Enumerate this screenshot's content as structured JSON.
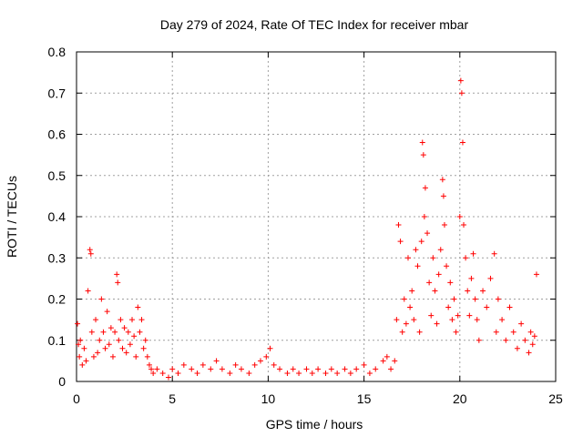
{
  "chart_data": {
    "type": "scatter",
    "title": "Day 279 of 2024, Rate Of TEC Index for receiver mbar",
    "xlabel": "GPS time / hours",
    "ylabel": "ROTI / TECUs",
    "xlim": [
      0,
      25
    ],
    "ylim": [
      0,
      0.8
    ],
    "xticks": [
      "0",
      "5",
      "10",
      "15",
      "20",
      "25"
    ],
    "yticks": [
      "0",
      "0.1",
      "0.2",
      "0.3",
      "0.4",
      "0.5",
      "0.6",
      "0.7",
      "0.8"
    ],
    "grid": true,
    "marker": "+",
    "color": "#ff0000",
    "series": [
      {
        "x": [
          0.05,
          0.1,
          0.15,
          0.2,
          0.3,
          0.4,
          0.5,
          0.6,
          0.7,
          0.75,
          0.8,
          0.9,
          1.0,
          1.1,
          1.2,
          1.3,
          1.4,
          1.5,
          1.6,
          1.7,
          1.8,
          1.9,
          2.0,
          2.1,
          2.15,
          2.2,
          2.3,
          2.4,
          2.5,
          2.6,
          2.7,
          2.8,
          2.9,
          3.0,
          3.1,
          3.2,
          3.3,
          3.4,
          3.5,
          3.6,
          3.7,
          3.8,
          3.9,
          4.0,
          4.2,
          4.5,
          4.8,
          5.0,
          5.3,
          5.6,
          6.0,
          6.3,
          6.6,
          7.0,
          7.3,
          7.6,
          8.0,
          8.3,
          8.6,
          9.0,
          9.3,
          9.6,
          9.9,
          10.1,
          10.3,
          10.6,
          11.0,
          11.3,
          11.6,
          12.0,
          12.3,
          12.6,
          13.0,
          13.3,
          13.6,
          14.0,
          14.3,
          14.6,
          15.0,
          15.3,
          15.6,
          16.0,
          16.2,
          16.4,
          16.6,
          16.7,
          16.8,
          16.9,
          17.0,
          17.1,
          17.2,
          17.3,
          17.4,
          17.5,
          17.6,
          17.7,
          17.8,
          17.9,
          18.0,
          18.05,
          18.1,
          18.15,
          18.2,
          18.3,
          18.4,
          18.5,
          18.6,
          18.7,
          18.8,
          18.9,
          19.0,
          19.1,
          19.15,
          19.2,
          19.3,
          19.4,
          19.5,
          19.6,
          19.7,
          19.8,
          19.9,
          20.0,
          20.05,
          20.1,
          20.15,
          20.2,
          20.3,
          20.4,
          20.5,
          20.6,
          20.7,
          20.8,
          20.9,
          21.0,
          21.2,
          21.4,
          21.6,
          21.8,
          21.9,
          22.0,
          22.2,
          22.4,
          22.6,
          22.8,
          23.0,
          23.2,
          23.4,
          23.6,
          23.7,
          23.8,
          23.9,
          24.0
        ],
        "y": [
          0.14,
          0.09,
          0.06,
          0.1,
          0.04,
          0.08,
          0.05,
          0.22,
          0.32,
          0.31,
          0.12,
          0.06,
          0.15,
          0.07,
          0.1,
          0.2,
          0.12,
          0.08,
          0.17,
          0.09,
          0.13,
          0.06,
          0.12,
          0.26,
          0.24,
          0.1,
          0.15,
          0.08,
          0.13,
          0.07,
          0.12,
          0.09,
          0.15,
          0.11,
          0.06,
          0.18,
          0.12,
          0.15,
          0.08,
          0.1,
          0.06,
          0.04,
          0.03,
          0.02,
          0.03,
          0.02,
          0.01,
          0.03,
          0.02,
          0.04,
          0.03,
          0.02,
          0.04,
          0.03,
          0.05,
          0.03,
          0.02,
          0.04,
          0.03,
          0.02,
          0.04,
          0.05,
          0.06,
          0.08,
          0.04,
          0.03,
          0.02,
          0.03,
          0.02,
          0.03,
          0.02,
          0.03,
          0.02,
          0.03,
          0.02,
          0.03,
          0.02,
          0.03,
          0.04,
          0.02,
          0.03,
          0.05,
          0.06,
          0.03,
          0.05,
          0.15,
          0.38,
          0.34,
          0.12,
          0.2,
          0.14,
          0.3,
          0.18,
          0.22,
          0.15,
          0.32,
          0.28,
          0.12,
          0.34,
          0.58,
          0.55,
          0.4,
          0.47,
          0.36,
          0.24,
          0.16,
          0.3,
          0.22,
          0.14,
          0.26,
          0.32,
          0.49,
          0.45,
          0.38,
          0.28,
          0.18,
          0.24,
          0.15,
          0.2,
          0.12,
          0.16,
          0.4,
          0.73,
          0.7,
          0.58,
          0.38,
          0.3,
          0.22,
          0.16,
          0.25,
          0.31,
          0.2,
          0.15,
          0.1,
          0.22,
          0.18,
          0.25,
          0.31,
          0.12,
          0.2,
          0.15,
          0.1,
          0.18,
          0.12,
          0.08,
          0.14,
          0.1,
          0.07,
          0.12,
          0.09,
          0.11,
          0.26
        ]
      }
    ]
  }
}
